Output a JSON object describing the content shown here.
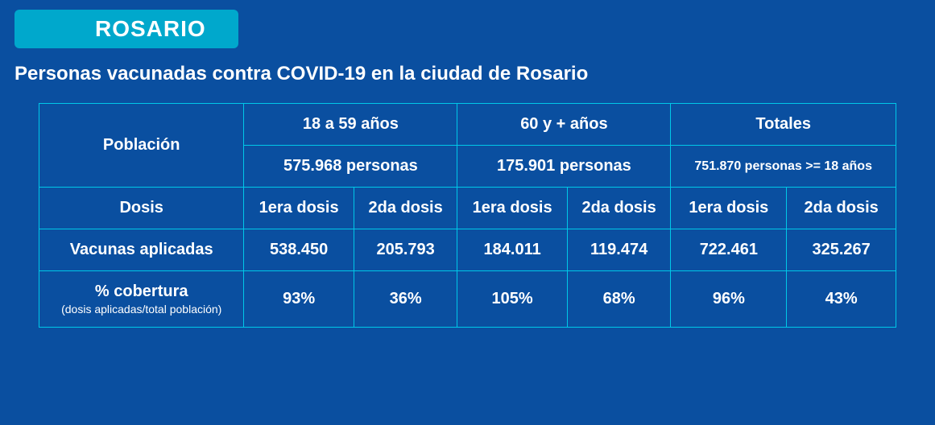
{
  "badge": "ROSARIO",
  "subtitle": "Personas vacunadas contra COVID-19 en la ciudad de Rosario",
  "colors": {
    "background": "#0a4fa0",
    "badge_bg": "#00a8cc",
    "border": "#00c8e8",
    "text": "#ffffff"
  },
  "table": {
    "header": {
      "poblacion": "Población",
      "group1": "18 a 59 años",
      "group2": "60 y + años",
      "group3": "Totales",
      "pop1": "575.968 personas",
      "pop2": "175.901 personas",
      "pop3": "751.870 personas >= 18 años",
      "dosis_label": "Dosis",
      "d1": "1era dosis",
      "d2": "2da dosis"
    },
    "rows": {
      "vacunas": {
        "label": "Vacunas aplicadas",
        "g1d1": "538.450",
        "g1d2": "205.793",
        "g2d1": "184.011",
        "g2d2": "119.474",
        "g3d1": "722.461",
        "g3d2": "325.267"
      },
      "cobertura": {
        "label": "% cobertura",
        "note": "(dosis aplicadas/total población)",
        "g1d1": "93%",
        "g1d2": "36%",
        "g2d1": "105%",
        "g2d2": "68%",
        "g3d1": "96%",
        "g3d2": "43%"
      }
    }
  }
}
